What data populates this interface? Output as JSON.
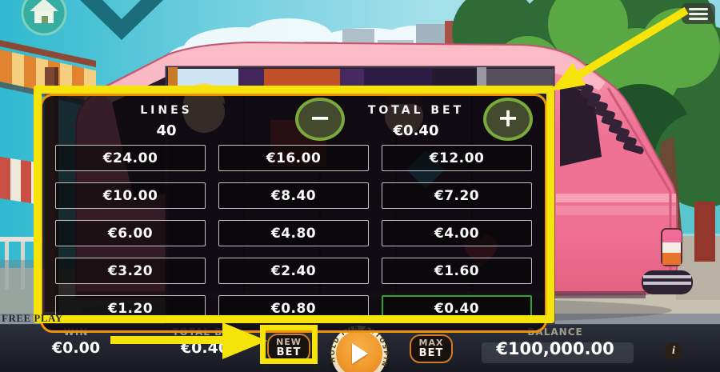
{
  "colors": {
    "highlight_yellow": "#f6e30a",
    "panel_border_orange": "#ef9206",
    "selected_green": "#2fa42f",
    "accent_orange": "#cf7d1e"
  },
  "menu_button": {
    "icon": "hamburger-menu-icon"
  },
  "bet_panel": {
    "lines_label": "LINES",
    "lines_value": "40",
    "total_bet_label": "TOTAL BET",
    "total_bet_value": "€0.40",
    "decrease_label": "−",
    "increase_label": "+",
    "bet_options": [
      [
        "€24.00",
        "€16.00",
        "€12.00"
      ],
      [
        "€10.00",
        "€8.40",
        "€7.20"
      ],
      [
        "€6.00",
        "€4.80",
        "€4.00"
      ],
      [
        "€3.20",
        "€2.40",
        "€1.60"
      ],
      [
        "€1.20",
        "€0.80",
        "€0.40"
      ]
    ],
    "selected_option": "€0.40"
  },
  "status": {
    "free_play_label": "FREE PLAY"
  },
  "bottom_bar": {
    "win_label": "WIN",
    "win_value": "€0.00",
    "total_bet_label": "TOTAL BET",
    "total_bet_value": "€0.40",
    "new_bet_button": {
      "line1": "NEW",
      "line2": "BET"
    },
    "play_button": {
      "hold_text": "HOLD FOR AUTOSPIN"
    },
    "max_bet_button": {
      "line1": "MAX",
      "line2": "BET"
    },
    "balance_label": "BALANCE",
    "balance_value": "€100,000.00",
    "info_button_label": "i"
  }
}
